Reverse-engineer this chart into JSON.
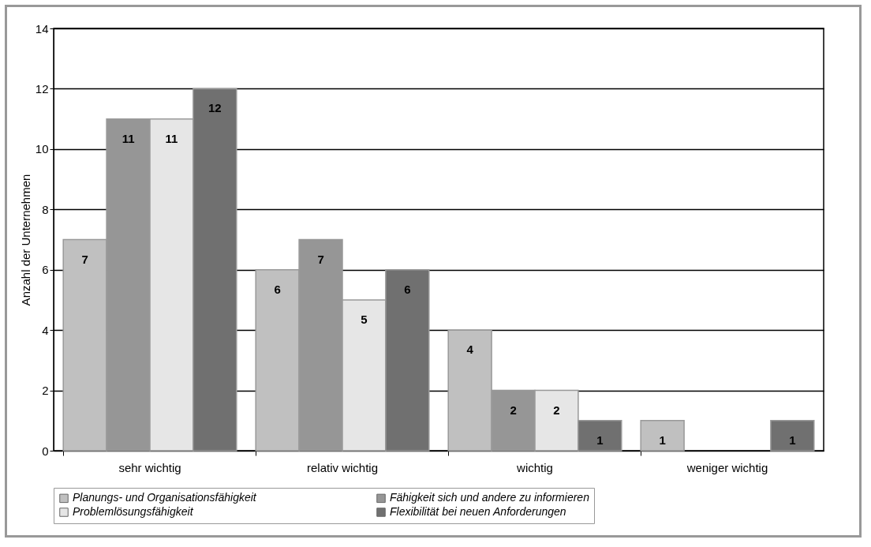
{
  "chart_data": {
    "type": "bar",
    "ylabel": "Anzahl der Unternehmen",
    "categories": [
      "sehr wichtig",
      "relativ wichtig",
      "wichtig",
      "weniger wichtig"
    ],
    "series": [
      {
        "name": "Planungs- und Organisationsfähigkeit",
        "color": "#c0c0c0",
        "values": [
          7,
          6,
          4,
          1
        ]
      },
      {
        "name": "Fähigkeit sich und andere zu informieren",
        "color": "#969696",
        "values": [
          11,
          7,
          2,
          null
        ]
      },
      {
        "name": "Problemlösungsfähigkeit",
        "color": "#e6e6e6",
        "values": [
          11,
          5,
          2,
          null
        ]
      },
      {
        "name": "Flexibilität bei neuen Anforderungen",
        "color": "#707070",
        "values": [
          12,
          6,
          1,
          1
        ]
      }
    ],
    "ylim": [
      0,
      14
    ],
    "yticks": [
      0,
      2,
      4,
      6,
      8,
      10,
      12,
      14
    ],
    "grid": "y",
    "legend": "bottom",
    "data_labels": true
  }
}
